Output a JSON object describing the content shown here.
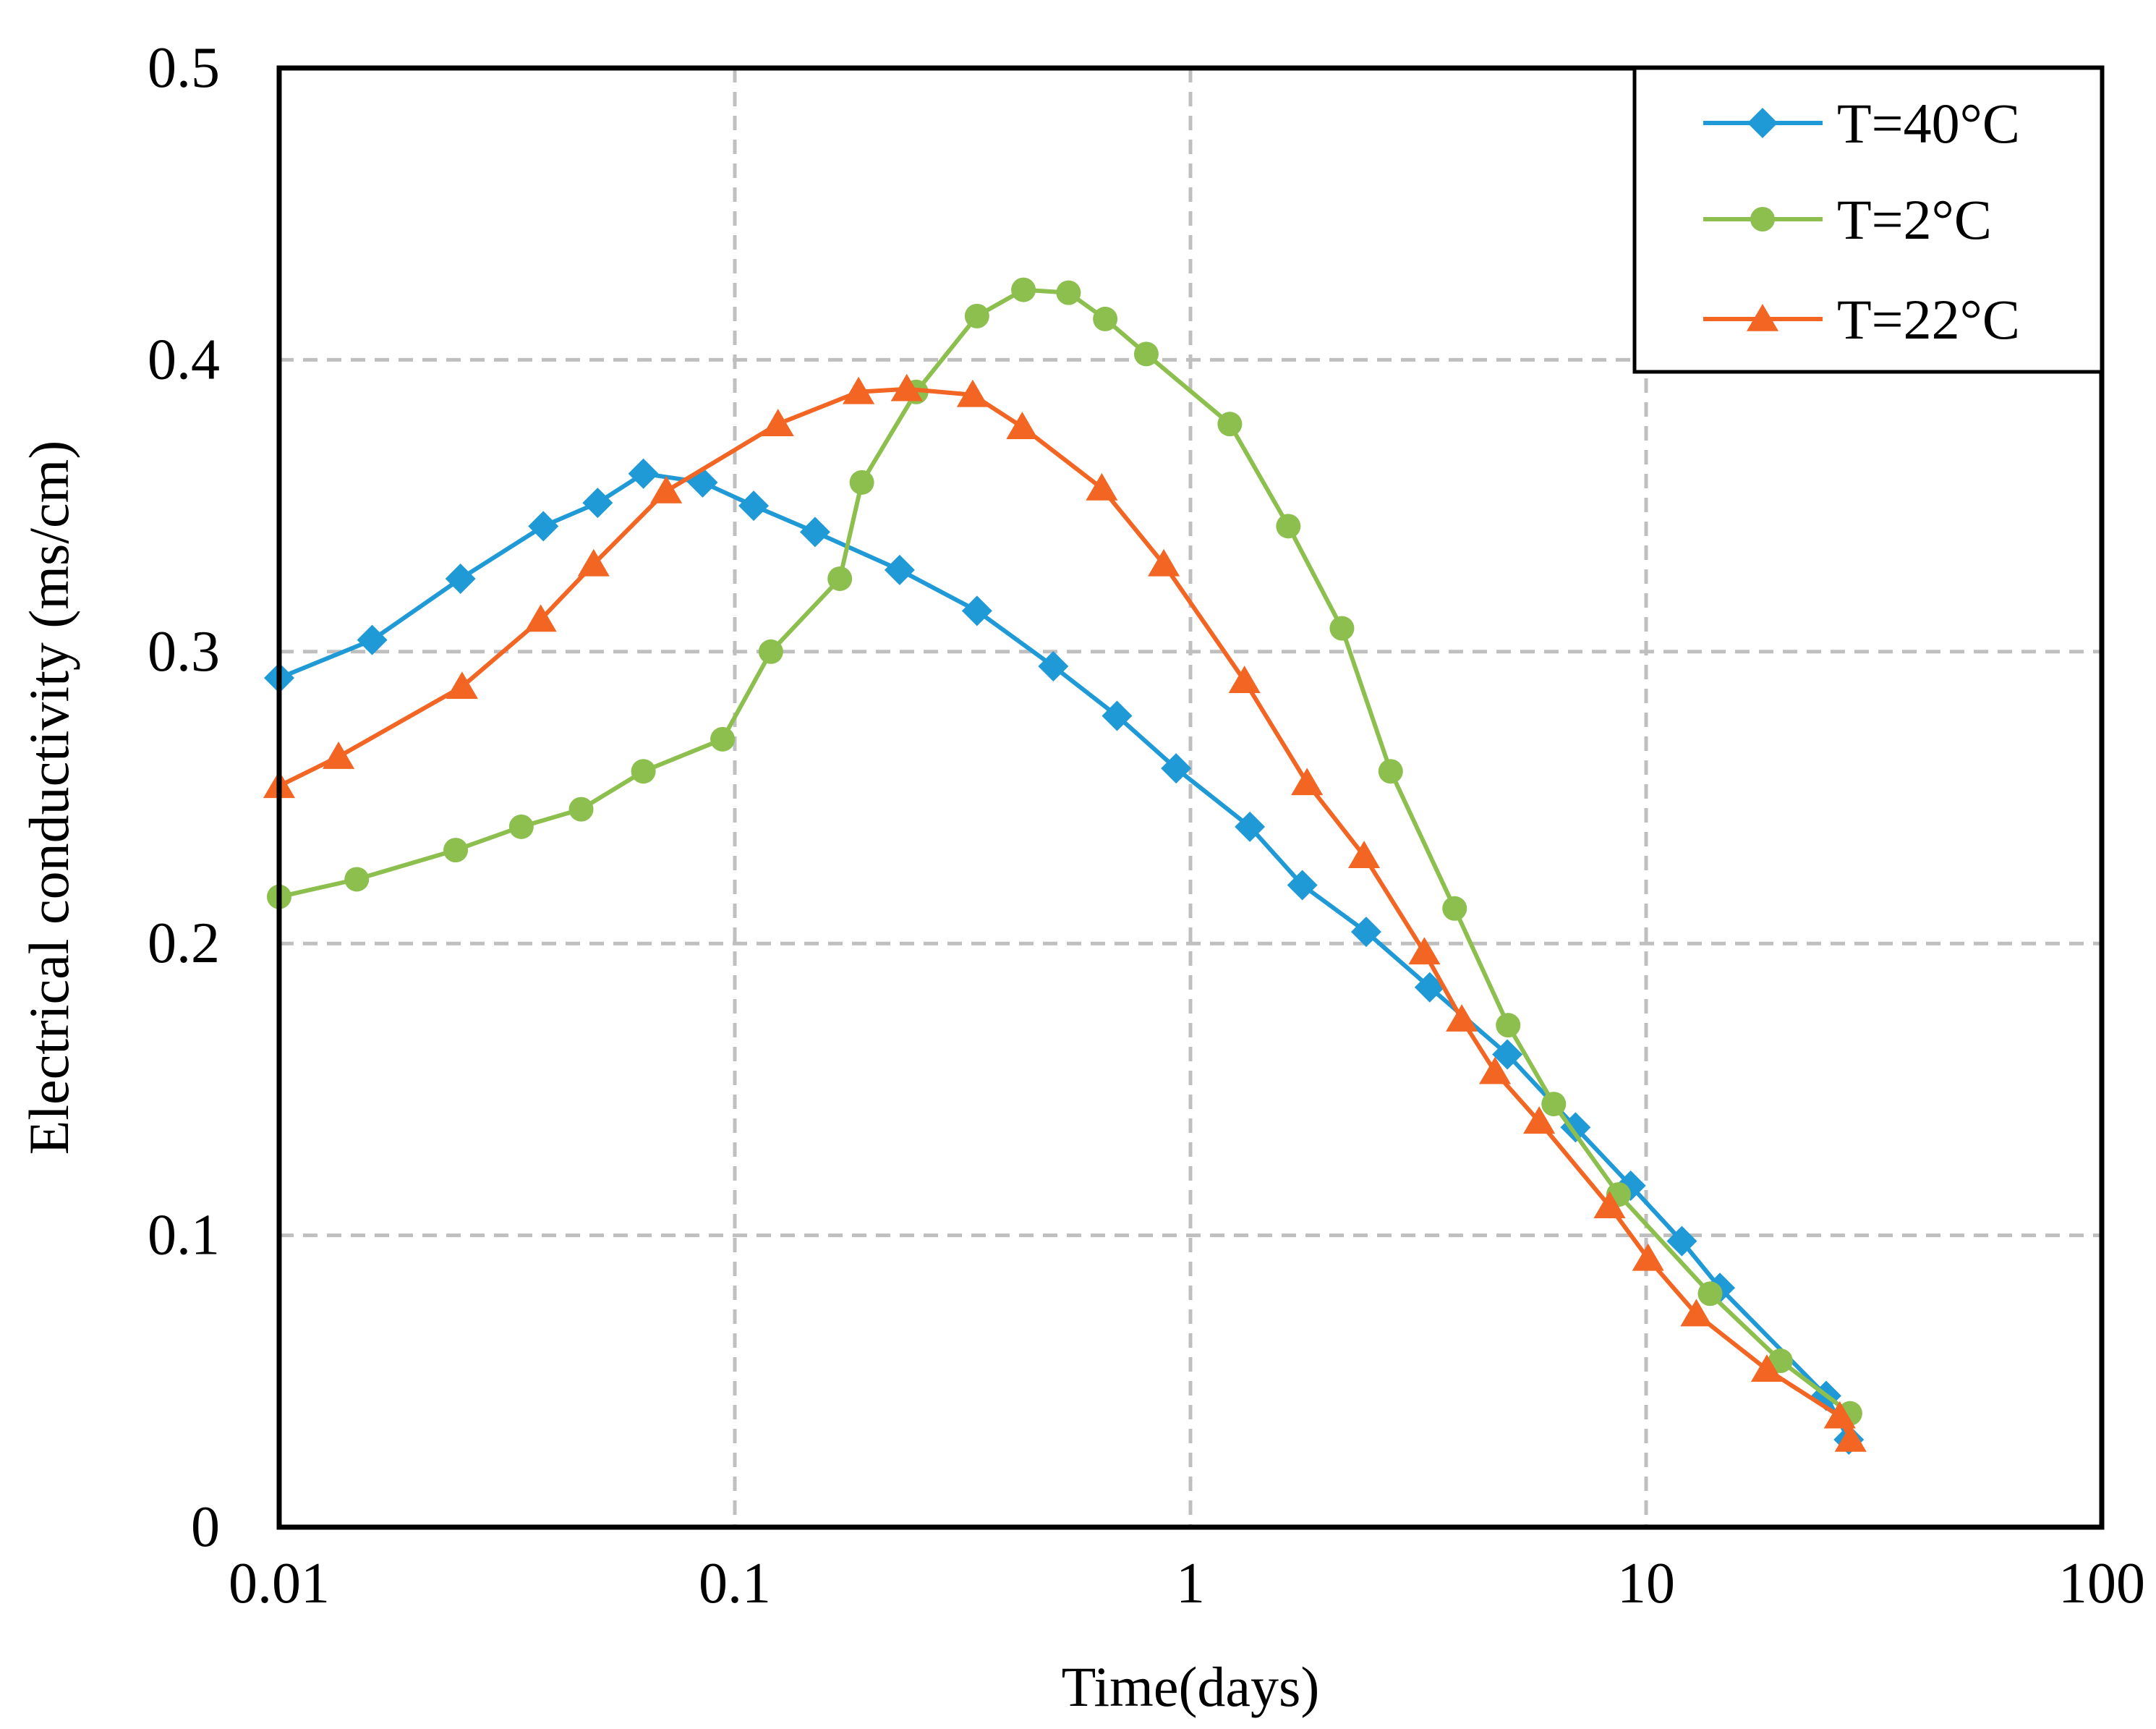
{
  "chart_data": {
    "type": "line",
    "title": "",
    "xlabel": "Time(days)",
    "ylabel": "Electrical conductivity (ms/cm)",
    "xscale": "log",
    "xlim": [
      0.01,
      100
    ],
    "ylim": [
      0,
      0.5
    ],
    "x_ticks": [
      0.01,
      0.1,
      1,
      10,
      100
    ],
    "x_tick_labels": [
      "0.01",
      "0.1",
      "1",
      "10",
      "100"
    ],
    "y_ticks": [
      0,
      0.1,
      0.2,
      0.3,
      0.4,
      0.5
    ],
    "y_tick_labels": [
      "0",
      "0.1",
      "0.2",
      "0.3",
      "0.4",
      "0.5"
    ],
    "grid": true,
    "legend_position": "top-right",
    "series": [
      {
        "name": "T=40°C",
        "color": "#1f9ad6",
        "marker": "diamond",
        "x": [
          0.01,
          0.016,
          0.025,
          0.038,
          0.05,
          0.063,
          0.085,
          0.11,
          0.15,
          0.23,
          0.34,
          0.5,
          0.69,
          0.93,
          1.35,
          1.76,
          2.43,
          3.35,
          4.96,
          7.0,
          9.25,
          11.98,
          14.52,
          24.84,
          27.85
        ],
        "values": [
          0.291,
          0.304,
          0.325,
          0.343,
          0.351,
          0.361,
          0.358,
          0.35,
          0.341,
          0.328,
          0.314,
          0.295,
          0.278,
          0.26,
          0.24,
          0.22,
          0.204,
          0.185,
          0.162,
          0.137,
          0.117,
          0.098,
          0.082,
          0.045,
          0.03
        ]
      },
      {
        "name": "T=2°C",
        "color": "#8dbf4f",
        "marker": "circle",
        "x": [
          0.01,
          0.0148,
          0.0244,
          0.034,
          0.046,
          0.063,
          0.094,
          0.12,
          0.17,
          0.19,
          0.25,
          0.34,
          0.43,
          0.54,
          0.65,
          0.8,
          1.22,
          1.64,
          2.15,
          2.75,
          3.8,
          4.98,
          6.27,
          8.7,
          13.82,
          19.72,
          28.02
        ],
        "values": [
          0.216,
          0.222,
          0.232,
          0.24,
          0.246,
          0.259,
          0.27,
          0.3,
          0.325,
          0.358,
          0.389,
          0.415,
          0.424,
          0.423,
          0.414,
          0.402,
          0.378,
          0.343,
          0.308,
          0.259,
          0.212,
          0.172,
          0.145,
          0.114,
          0.08,
          0.057,
          0.039
        ]
      },
      {
        "name": "T=22°C",
        "color": "#f26522",
        "marker": "triangle",
        "x": [
          0.01,
          0.0135,
          0.0252,
          0.0375,
          0.049,
          0.0707,
          0.1244,
          0.1869,
          0.2384,
          0.3327,
          0.4273,
          0.6388,
          0.8739,
          1.3139,
          1.8025,
          2.4046,
          3.2614,
          3.9398,
          4.6596,
          5.8249,
          8.3144,
          10.1014,
          12.8885,
          18.4089,
          26.6074,
          28.1051
        ],
        "values": [
          0.254,
          0.264,
          0.288,
          0.311,
          0.33,
          0.355,
          0.378,
          0.389,
          0.39,
          0.388,
          0.377,
          0.356,
          0.33,
          0.29,
          0.255,
          0.23,
          0.197,
          0.174,
          0.156,
          0.139,
          0.11,
          0.092,
          0.073,
          0.054,
          0.038,
          0.03
        ]
      }
    ]
  }
}
